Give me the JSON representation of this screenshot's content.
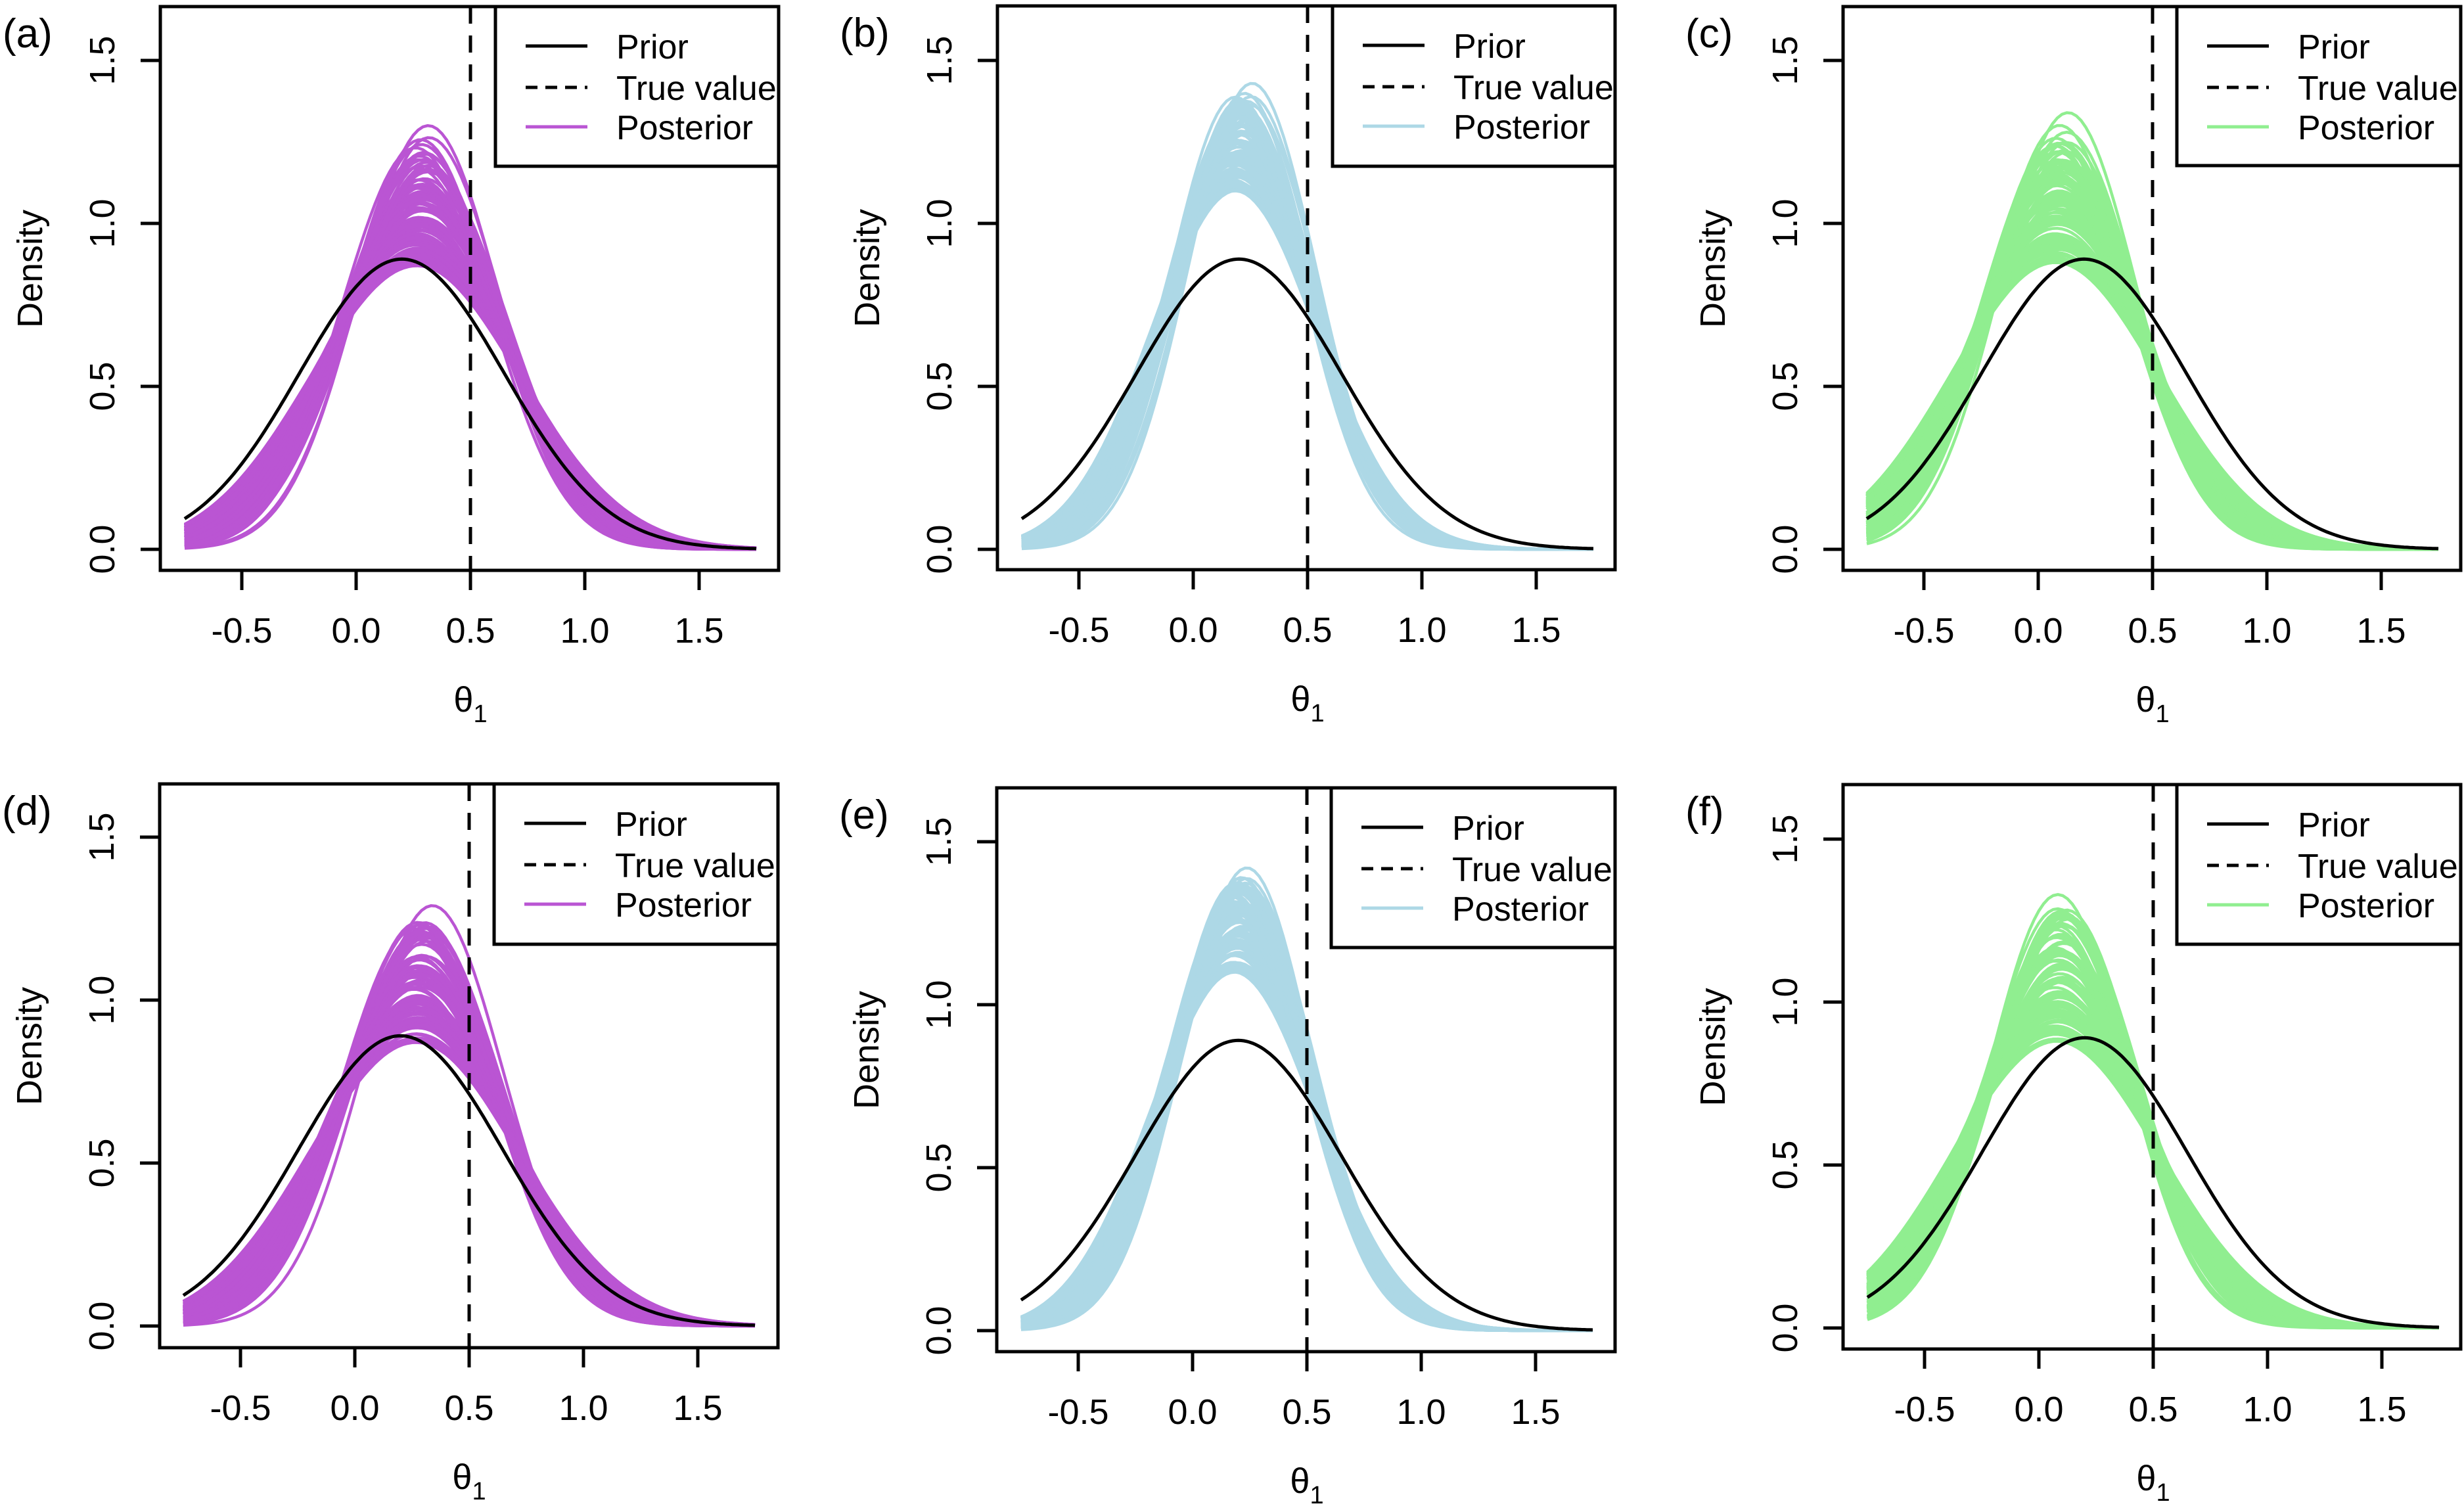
{
  "figure": {
    "layout": "2x3 grid of density plots"
  },
  "chart_data": [
    {
      "panel": "(a)",
      "type": "line",
      "xlabel": "θ",
      "xlabel_sub": "1",
      "ylabel": "Density",
      "xlim": [
        -0.9,
        1.85
      ],
      "ylim": [
        -0.07,
        1.65
      ],
      "xticks": [
        "-0.5",
        "0.0",
        "0.5",
        "1.0",
        "1.5"
      ],
      "xtick_values": [
        -0.5,
        0.0,
        0.5,
        1.0,
        1.5
      ],
      "yticks": [
        "0.0",
        "0.5",
        "1.0",
        "1.5"
      ],
      "ytick_values": [
        0.0,
        0.5,
        1.0,
        1.5
      ],
      "x_range": [
        -0.75,
        1.75
      ],
      "true_value": 0.5,
      "legend": {
        "position": "top-right",
        "entries": [
          "Prior",
          "True value",
          "Posterior"
        ]
      },
      "prior": {
        "name": "Prior",
        "distribution": "normal",
        "mean": 0.2,
        "sd": 0.448,
        "peak": 0.89,
        "color": "#000000"
      },
      "posterior": {
        "name": "Posterior",
        "color": "#BA55D3",
        "n_curves": 100,
        "mean_range": [
          0.22,
          0.34
        ],
        "peak_range": [
          0.87,
          1.3
        ]
      }
    },
    {
      "panel": "(b)",
      "type": "line",
      "xlabel": "θ",
      "xlabel_sub": "1",
      "ylabel": "Density",
      "xlim": [
        -0.9,
        1.85
      ],
      "ylim": [
        -0.07,
        1.65
      ],
      "xticks": [
        "-0.5",
        "0.0",
        "0.5",
        "1.0",
        "1.5"
      ],
      "xtick_values": [
        -0.5,
        0.0,
        0.5,
        1.0,
        1.5
      ],
      "yticks": [
        "0.0",
        "0.5",
        "1.0",
        "1.5"
      ],
      "ytick_values": [
        0.0,
        0.5,
        1.0,
        1.5
      ],
      "x_range": [
        -0.75,
        1.75
      ],
      "true_value": 0.5,
      "legend": {
        "position": "top-right",
        "entries": [
          "Prior",
          "True value",
          "Posterior"
        ]
      },
      "prior": {
        "name": "Prior",
        "distribution": "normal",
        "mean": 0.2,
        "sd": 0.448,
        "peak": 0.89,
        "color": "#000000"
      },
      "posterior": {
        "name": "Posterior",
        "color": "#ADD8E6",
        "n_curves": 100,
        "mean_range": [
          0.14,
          0.26
        ],
        "peak_range": [
          1.1,
          1.43
        ]
      }
    },
    {
      "panel": "(c)",
      "type": "line",
      "xlabel": "θ",
      "xlabel_sub": "1",
      "ylabel": "Density",
      "xlim": [
        -0.9,
        1.85
      ],
      "ylim": [
        -0.07,
        1.65
      ],
      "xticks": [
        "-0.5",
        "0.0",
        "0.5",
        "1.0",
        "1.5"
      ],
      "xtick_values": [
        -0.5,
        0.0,
        0.5,
        1.0,
        1.5
      ],
      "yticks": [
        "0.0",
        "0.5",
        "1.0",
        "1.5"
      ],
      "ytick_values": [
        0.0,
        0.5,
        1.0,
        1.5
      ],
      "x_range": [
        -0.75,
        1.75
      ],
      "true_value": 0.5,
      "legend": {
        "position": "top-right",
        "entries": [
          "Prior",
          "True value",
          "Posterior"
        ]
      },
      "prior": {
        "name": "Prior",
        "distribution": "normal",
        "mean": 0.2,
        "sd": 0.448,
        "peak": 0.89,
        "color": "#000000"
      },
      "posterior": {
        "name": "Posterior",
        "color": "#90EE90",
        "n_curves": 100,
        "mean_range": [
          0.04,
          0.14
        ],
        "peak_range": [
          0.88,
          1.34
        ]
      }
    },
    {
      "panel": "(d)",
      "type": "line",
      "xlabel": "θ",
      "xlabel_sub": "1",
      "ylabel": "Density",
      "xlim": [
        -0.9,
        1.85
      ],
      "ylim": [
        -0.07,
        1.65
      ],
      "xticks": [
        "-0.5",
        "0.0",
        "0.5",
        "1.0",
        "1.5"
      ],
      "xtick_values": [
        -0.5,
        0.0,
        0.5,
        1.0,
        1.5
      ],
      "yticks": [
        "0.0",
        "0.5",
        "1.0",
        "1.5"
      ],
      "ytick_values": [
        0.0,
        0.5,
        1.0,
        1.5
      ],
      "x_range": [
        -0.75,
        1.75
      ],
      "true_value": 0.5,
      "legend": {
        "position": "top-right",
        "entries": [
          "Prior",
          "True value",
          "Posterior"
        ]
      },
      "prior": {
        "name": "Prior",
        "distribution": "normal",
        "mean": 0.2,
        "sd": 0.448,
        "peak": 0.89,
        "color": "#000000"
      },
      "posterior": {
        "name": "Posterior",
        "color": "#BA55D3",
        "n_curves": 100,
        "mean_range": [
          0.22,
          0.34
        ],
        "peak_range": [
          0.87,
          1.29
        ]
      }
    },
    {
      "panel": "(e)",
      "type": "line",
      "xlabel": "θ",
      "xlabel_sub": "1",
      "ylabel": "Density",
      "xlim": [
        -0.9,
        1.85
      ],
      "ylim": [
        -0.07,
        1.65
      ],
      "xticks": [
        "-0.5",
        "0.0",
        "0.5",
        "1.0",
        "1.5"
      ],
      "xtick_values": [
        -0.5,
        0.0,
        0.5,
        1.0,
        1.5
      ],
      "yticks": [
        "0.0",
        "0.5",
        "1.0",
        "1.5"
      ],
      "ytick_values": [
        0.0,
        0.5,
        1.0,
        1.5
      ],
      "x_range": [
        -0.75,
        1.75
      ],
      "true_value": 0.5,
      "legend": {
        "position": "top-right",
        "entries": [
          "Prior",
          "True value",
          "Posterior"
        ]
      },
      "prior": {
        "name": "Prior",
        "distribution": "normal",
        "mean": 0.2,
        "sd": 0.448,
        "peak": 0.89,
        "color": "#000000"
      },
      "posterior": {
        "name": "Posterior",
        "color": "#ADD8E6",
        "n_curves": 100,
        "mean_range": [
          0.14,
          0.26
        ],
        "peak_range": [
          1.1,
          1.42
        ]
      }
    },
    {
      "panel": "(f)",
      "type": "line",
      "xlabel": "θ",
      "xlabel_sub": "1",
      "ylabel": "Density",
      "xlim": [
        -0.9,
        1.85
      ],
      "ylim": [
        -0.07,
        1.65
      ],
      "xticks": [
        "-0.5",
        "0.0",
        "0.5",
        "1.0",
        "1.5"
      ],
      "xtick_values": [
        -0.5,
        0.0,
        0.5,
        1.0,
        1.5
      ],
      "yticks": [
        "0.0",
        "0.5",
        "1.0",
        "1.5"
      ],
      "ytick_values": [
        0.0,
        0.5,
        1.0,
        1.5
      ],
      "x_range": [
        -0.75,
        1.75
      ],
      "true_value": 0.5,
      "legend": {
        "position": "top-right",
        "entries": [
          "Prior",
          "True value",
          "Posterior"
        ]
      },
      "prior": {
        "name": "Prior",
        "distribution": "normal",
        "mean": 0.2,
        "sd": 0.448,
        "peak": 0.89,
        "color": "#000000"
      },
      "posterior": {
        "name": "Posterior",
        "color": "#90EE90",
        "n_curves": 100,
        "mean_range": [
          0.04,
          0.14
        ],
        "peak_range": [
          0.88,
          1.33
        ]
      }
    }
  ]
}
